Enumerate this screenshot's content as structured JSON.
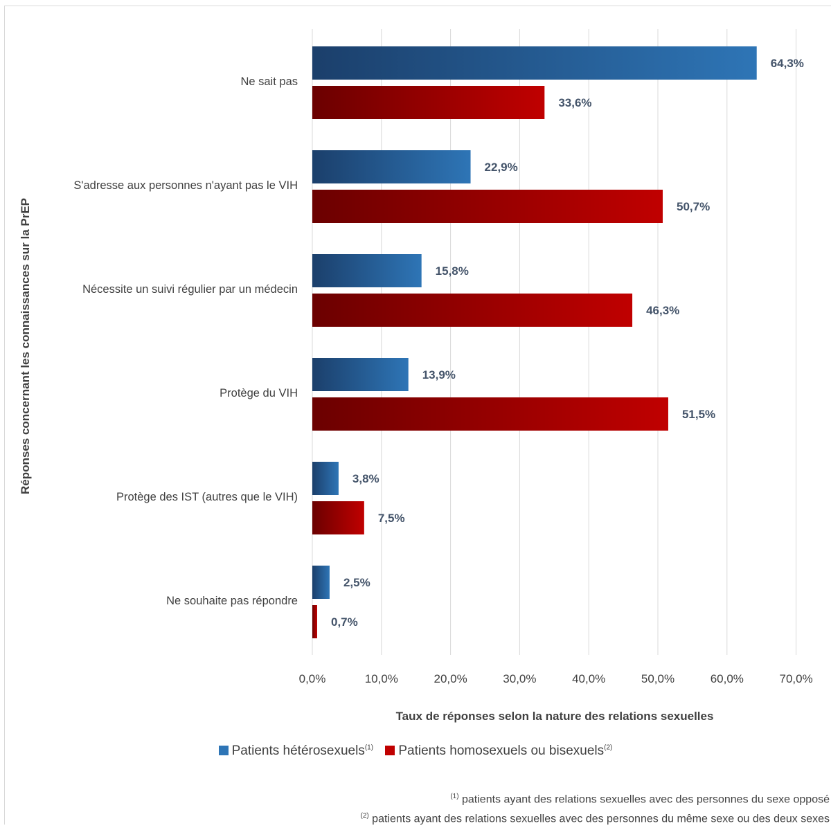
{
  "chart_data": {
    "type": "bar",
    "orientation": "horizontal",
    "categories": [
      "Ne sait pas",
      "S'adresse aux personnes n'ayant pas le VIH",
      "Nécessite un suivi régulier par un médecin",
      "Protège du VIH",
      "Protège des IST (autres que le VIH)",
      "Ne souhaite pas répondre"
    ],
    "series": [
      {
        "name": "Patients hétérosexuels",
        "note_marker": "(1)",
        "color": "#2e75b6",
        "color_dark": "#1b3f6b",
        "values": [
          64.3,
          22.9,
          15.8,
          13.9,
          3.8,
          2.5
        ],
        "labels": [
          "64,3%",
          "22,9%",
          "15,8%",
          "13,9%",
          "3,8%",
          "2,5%"
        ]
      },
      {
        "name": "Patients homosexuels ou bisexuels",
        "note_marker": "(2)",
        "color": "#c00000",
        "color_dark": "#6b0000",
        "values": [
          33.6,
          50.7,
          46.3,
          51.5,
          7.5,
          0.7
        ],
        "labels": [
          "33,6%",
          "50,7%",
          "46,3%",
          "51,5%",
          "7,5%",
          "0,7%"
        ]
      }
    ],
    "xlim": [
      0,
      70
    ],
    "xticks": [
      "0,0%",
      "10,0%",
      "20,0%",
      "30,0%",
      "40,0%",
      "50,0%",
      "60,0%",
      "70,0%"
    ],
    "xlabel": "Taux de réponses selon la nature des relations sexuelles",
    "ylabel": "Réponses concernant les connaissances sur la PrEP",
    "grid": "vertical",
    "legend_position": "bottom"
  },
  "footnotes": [
    {
      "marker": "(1)",
      "text": " patients ayant des relations sexuelles avec des personnes du sexe opposé"
    },
    {
      "marker": "(2)",
      "text": " patients ayant des relations sexuelles avec des personnes du même sexe ou des deux sexes"
    }
  ]
}
